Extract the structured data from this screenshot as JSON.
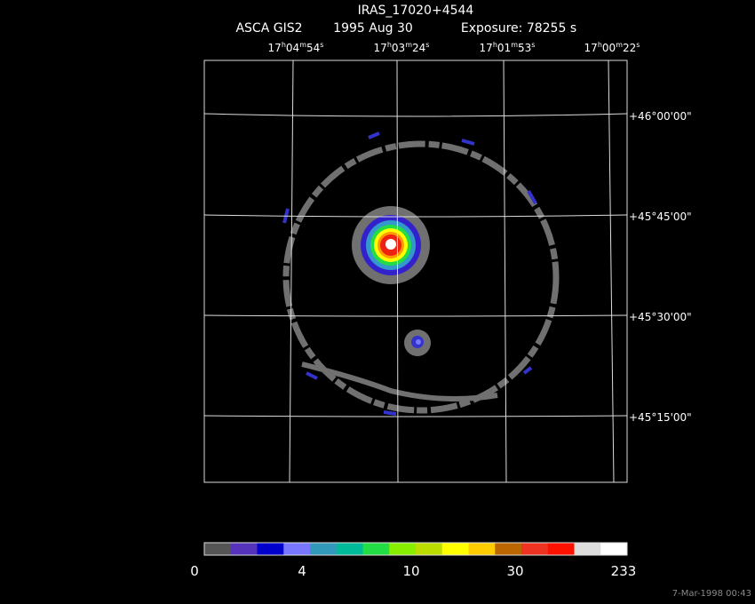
{
  "header": {
    "title": "IRAS_17020+4544",
    "instrument": "ASCA GIS2",
    "date": "1995 Aug 30",
    "exposure": "Exposure: 78255 s"
  },
  "ra_labels": [
    [
      "17",
      "h",
      "04",
      "m",
      "54",
      "s"
    ],
    [
      "17",
      "h",
      "03",
      "m",
      "24",
      "s"
    ],
    [
      "17",
      "h",
      "01",
      "m",
      "53",
      "s"
    ],
    [
      "17",
      "h",
      "00",
      "m",
      "22",
      "s"
    ]
  ],
  "dec_labels": [
    "+46°00'00\"",
    "+45°45'00\"",
    "+45°30'00\"",
    "+45°15'00\""
  ],
  "colorbar": {
    "colors": [
      "#555555",
      "#5533bb",
      "#0000cc",
      "#7777ff",
      "#3399bb",
      "#00bb99",
      "#22dd44",
      "#88ee00",
      "#bbdd00",
      "#ffff00",
      "#ffcc00",
      "#bb6600",
      "#ee3322",
      "#ff1100",
      "#dddddd",
      "#ffffff"
    ],
    "ticks": [
      0,
      4,
      10,
      30,
      233
    ]
  },
  "footer": "7-Mar-1998 00:43"
}
